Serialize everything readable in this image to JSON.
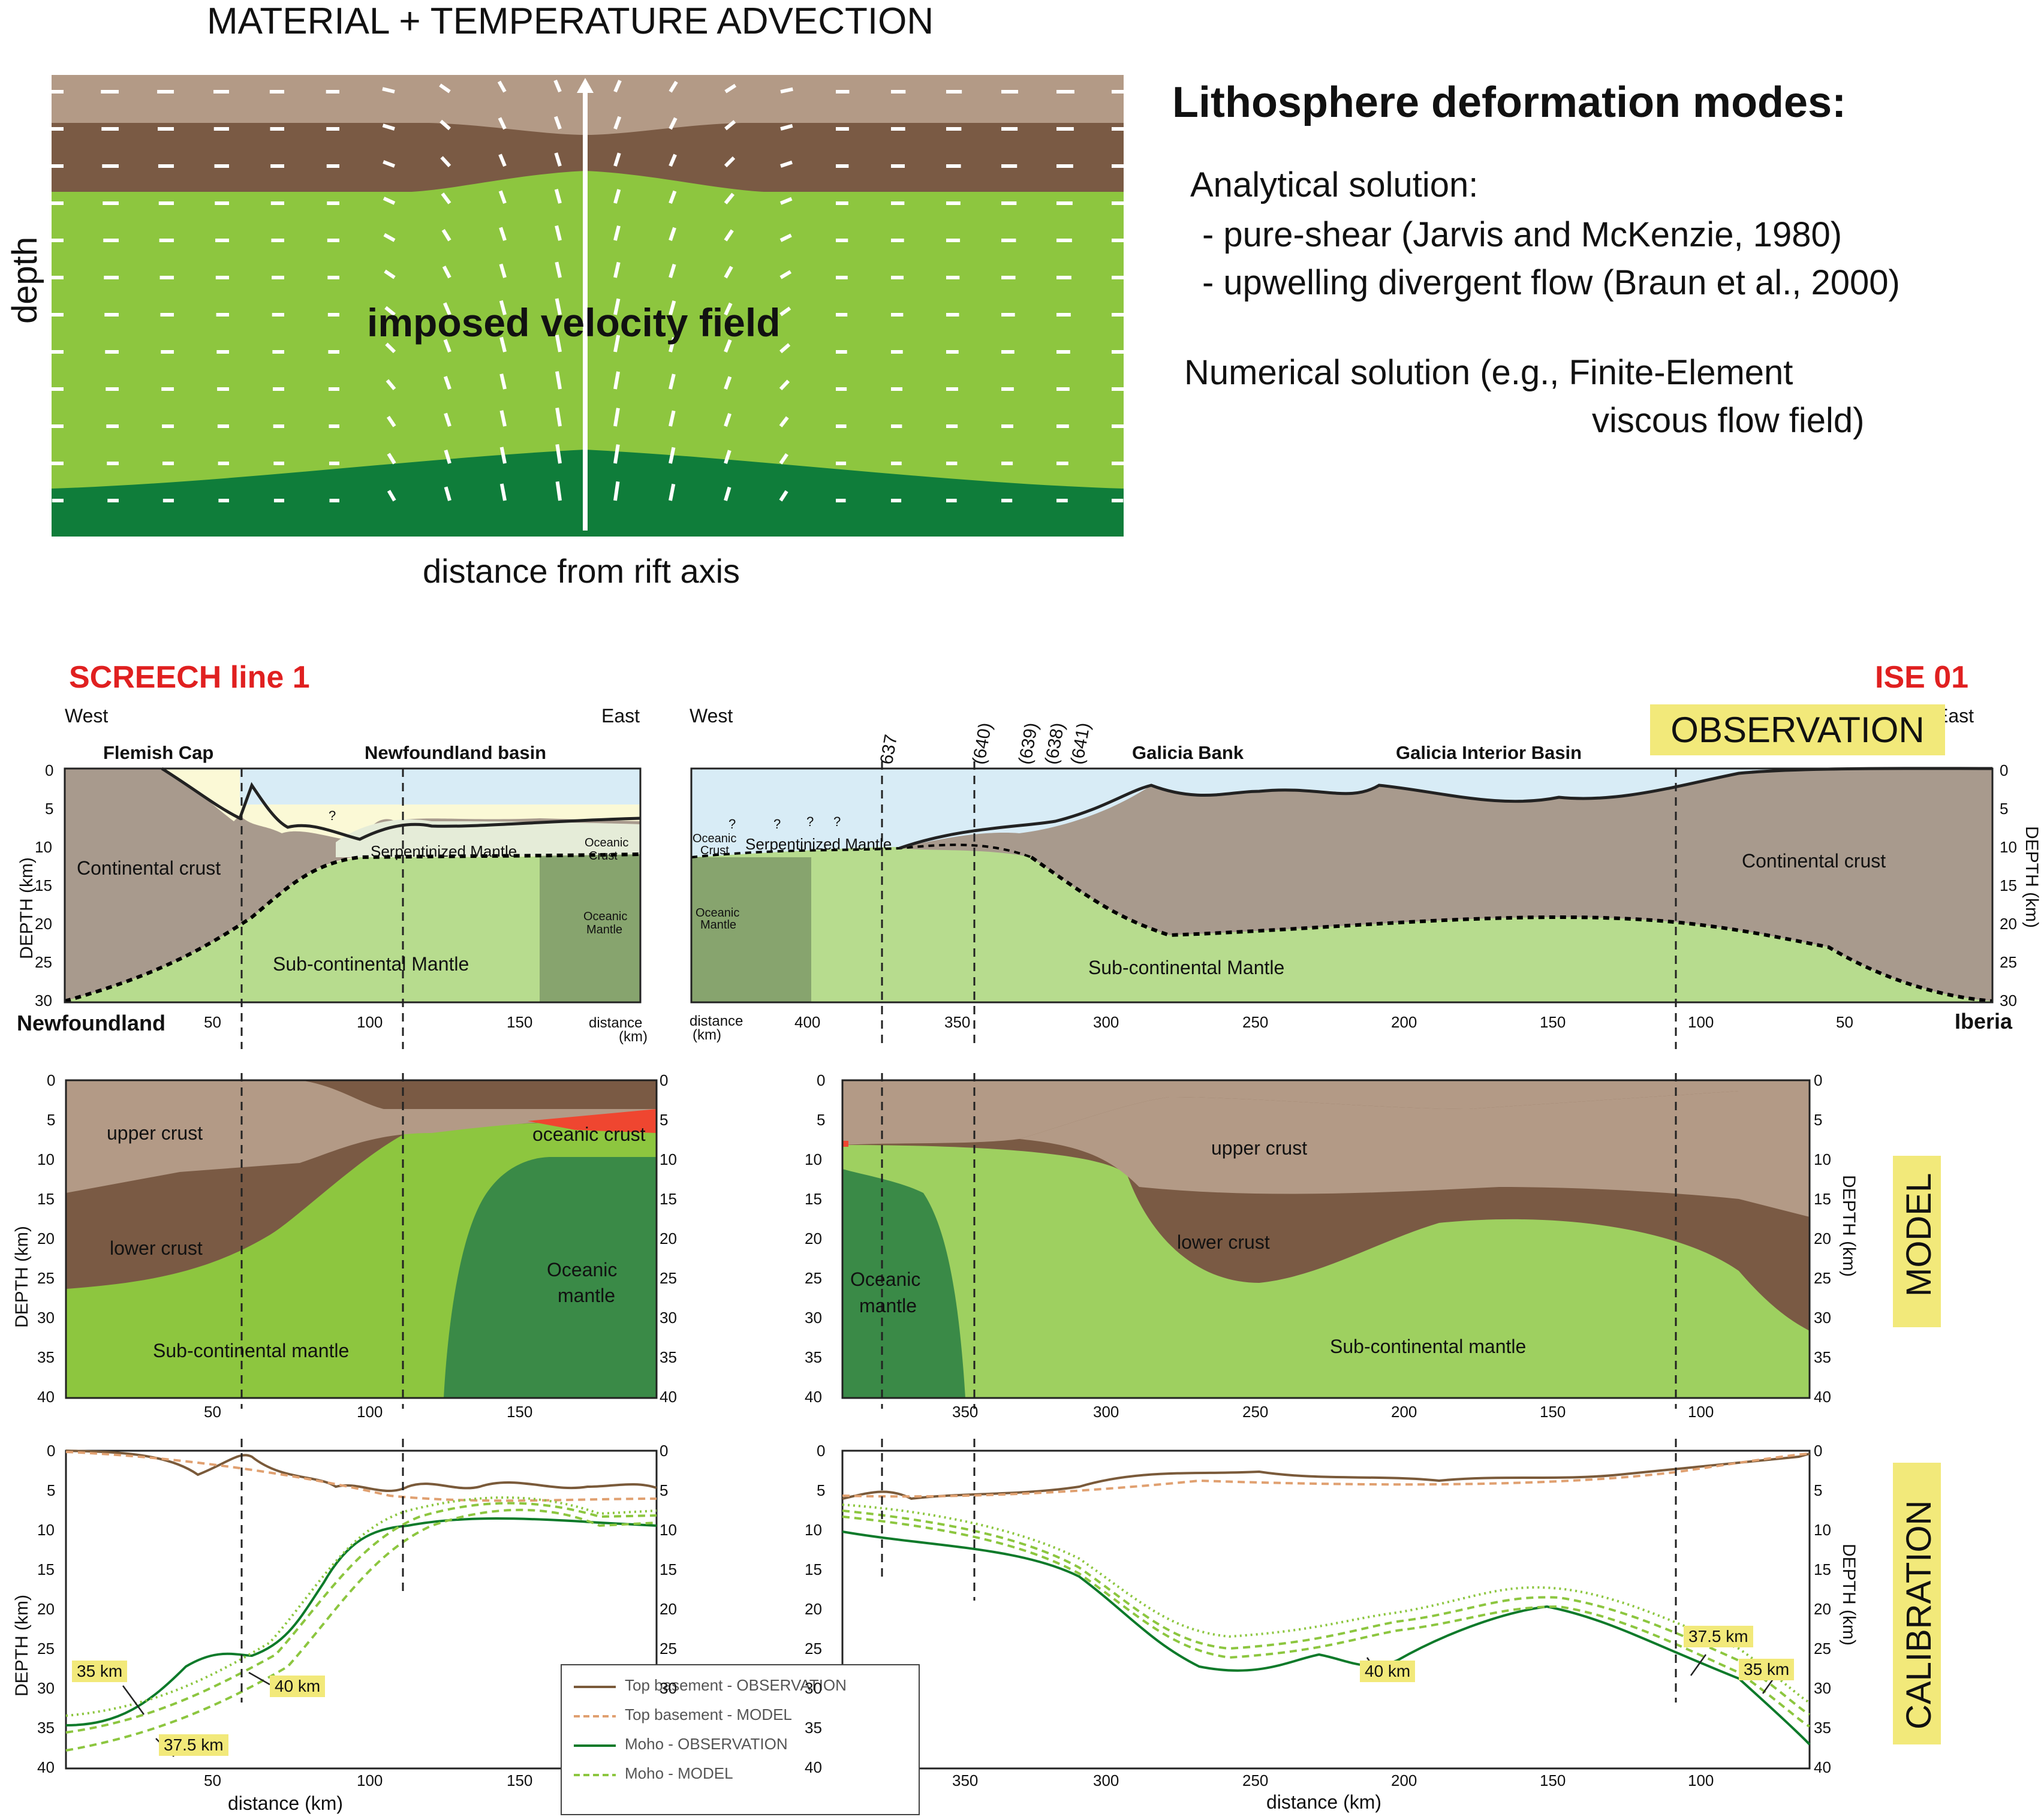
{
  "top": {
    "title": "MATERIAL + TEMPERATURE ADVECTION",
    "ylabel": "depth",
    "xlabel": "distance from rift axis",
    "field_label": "imposed velocity field"
  },
  "modes": {
    "heading": "Lithosphere deformation modes:",
    "analytical": "Analytical solution:",
    "item1": "- pure-shear (Jarvis and McKenzie, 1980)",
    "item2": "- upwelling divergent flow (Braun et al., 2000)",
    "numerical1": "Numerical solution (e.g., Finite-Element",
    "numerical2": "viscous flow field)"
  },
  "sections": {
    "left_title": "SCREECH line 1",
    "right_title": "ISE 01",
    "west": "West",
    "east": "East",
    "newfoundland": "Newfoundland",
    "iberia": "Iberia",
    "distance_label": "distance",
    "km_label": "(km)",
    "depth_label": "DEPTH (km)",
    "distance_axis": "distance (km)"
  },
  "observation": {
    "tag": "OBSERVATION",
    "flemish_cap": "Flemish Cap",
    "newfoundland_basin": "Newfoundland basin",
    "galicia_bank": "Galicia Bank",
    "galicia_interior": "Galicia Interior Basin",
    "continental_crust": "Continental crust",
    "serpentinized_mantle": "Serpentinized Mantle",
    "oceanic_crust_a": "Oceanic",
    "oceanic_crust_b": "Crust",
    "oceanic_mantle_a": "Oceanic",
    "oceanic_mantle_b": "Mantle",
    "sub_continental_mantle": "Sub-continental Mantle",
    "q": "?",
    "wells": [
      "637",
      "(640)",
      "(639)",
      "(638)",
      "(641)"
    ]
  },
  "model": {
    "tag": "MODEL",
    "upper_crust": "upper crust",
    "lower_crust": "lower crust",
    "oceanic_crust": "oceanic crust",
    "oceanic_mantle_a": "Oceanic",
    "oceanic_mantle_b": "mantle",
    "sub_continental_mantle": "Sub-continental mantle"
  },
  "calibration": {
    "tag": "CALIBRATION",
    "labels": [
      "35 km",
      "40 km",
      "37.5 km",
      "40 km",
      "37.5 km",
      "35 km"
    ],
    "legend": [
      {
        "label": "Top basement - OBSERVATION",
        "color": "#7a5a3a",
        "style": "solid"
      },
      {
        "label": "Top basement - MODEL",
        "color": "#e0a070",
        "style": "dashed"
      },
      {
        "label": "Moho - OBSERVATION",
        "color": "#0d7a2a",
        "style": "solid"
      },
      {
        "label": "Moho - MODEL",
        "color": "#8cc63f",
        "style": "dashed"
      }
    ]
  },
  "axes": {
    "depth_ticks": [
      "0",
      "5",
      "10",
      "15",
      "20",
      "25",
      "30",
      "35",
      "40"
    ],
    "obs_depth_ticks": [
      "0",
      "5",
      "10",
      "15",
      "20",
      "25",
      "30"
    ],
    "left_dist_ticks": [
      "50",
      "100",
      "150"
    ],
    "right_dist_ticks_obs": [
      "400",
      "350",
      "300",
      "250",
      "200",
      "150",
      "100",
      "50"
    ],
    "right_dist_ticks_model": [
      "350",
      "300",
      "250",
      "200",
      "150",
      "100"
    ]
  }
}
